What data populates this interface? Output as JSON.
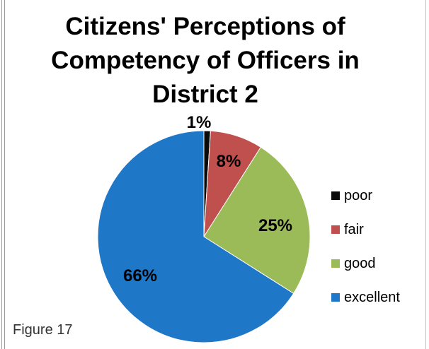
{
  "chart_data": {
    "type": "pie",
    "title": "Citizens' Perceptions of Competency of Officers in District 2",
    "title_lines": [
      "Citizens' Perceptions of",
      "Competency of Officers in",
      "District 2"
    ],
    "categories": [
      "poor",
      "fair",
      "good",
      "excellent"
    ],
    "values": [
      1,
      8,
      25,
      66
    ],
    "data_labels": [
      "1%",
      "8%",
      "25%",
      "66%"
    ],
    "colors": [
      "#0a0a0a",
      "#c0504d",
      "#9bbb59",
      "#1f77c8"
    ],
    "legend_placement": "right"
  },
  "caption": "Figure 17"
}
